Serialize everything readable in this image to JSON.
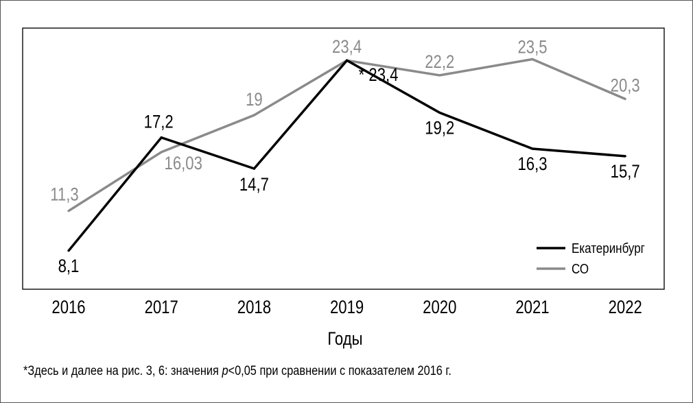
{
  "chart_data": {
    "type": "line",
    "x": [
      "2016",
      "2017",
      "2018",
      "2019",
      "2020",
      "2021",
      "2022"
    ],
    "xlabel": "Годы",
    "ylabel": "",
    "ylim": [
      5,
      26
    ],
    "grid": false,
    "legend_position": "bottom-right",
    "series": [
      {
        "name": "Екатеринбург",
        "color": "#000000",
        "values": [
          8.1,
          17.2,
          14.7,
          23.4,
          19.2,
          16.3,
          15.7
        ],
        "labels": [
          "8,1",
          "17,2",
          "14,7",
          "23,4",
          "19,2",
          "16,3",
          "15,7"
        ],
        "label_prefix": [
          "",
          "",
          "",
          "* ",
          "",
          "",
          ""
        ]
      },
      {
        "name": "СО",
        "color": "#8a8a8a",
        "values": [
          11.3,
          16.03,
          19,
          23.4,
          22.2,
          23.5,
          20.3
        ],
        "labels": [
          "11,3",
          "16,03",
          "19",
          "23,4",
          "22,2",
          "23,5",
          "20,3"
        ]
      }
    ]
  },
  "footnote": {
    "before": "*Здесь и далее на рис. 3, 6: значения ",
    "p": "p",
    "after": "<0,05 при сравнении с показателем 2016 г."
  }
}
